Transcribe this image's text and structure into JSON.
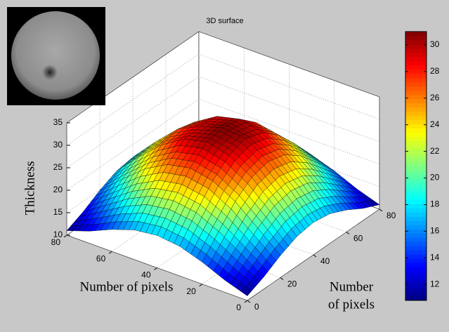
{
  "chart_data": {
    "type": "surface",
    "title": "3D surface",
    "zlabel": "Thickness",
    "xlabel": "Number of pixels",
    "ylabel_lines": [
      "Number",
      "of pixels"
    ],
    "x": [
      0,
      10,
      20,
      30,
      40,
      50,
      60,
      70,
      80
    ],
    "y": [
      0,
      10,
      20,
      30,
      40,
      50,
      60,
      70,
      80
    ],
    "z": [
      [
        11.0,
        12.7,
        14.9,
        16.6,
        17.2,
        16.6,
        14.9,
        12.7,
        11.0
      ],
      [
        12.7,
        16.0,
        19.2,
        21.6,
        22.4,
        21.6,
        19.2,
        16.0,
        12.7
      ],
      [
        14.9,
        19.2,
        23.3,
        26.1,
        27.1,
        26.1,
        23.3,
        19.2,
        14.9
      ],
      [
        16.6,
        21.6,
        26.1,
        29.2,
        30.4,
        29.2,
        26.1,
        21.6,
        16.6
      ],
      [
        17.2,
        22.4,
        27.1,
        30.4,
        31.0,
        30.4,
        27.1,
        22.4,
        17.2
      ],
      [
        16.6,
        21.6,
        26.1,
        29.2,
        29.5,
        29.2,
        26.1,
        21.6,
        16.6
      ],
      [
        14.9,
        19.2,
        23.3,
        26.1,
        27.1,
        26.1,
        23.3,
        19.2,
        14.9
      ],
      [
        12.7,
        16.0,
        19.2,
        21.6,
        22.4,
        21.6,
        19.2,
        16.0,
        12.7
      ],
      [
        11.0,
        12.7,
        14.9,
        16.6,
        17.2,
        16.6,
        14.9,
        12.7,
        11.0
      ]
    ],
    "xlim": [
      0,
      80
    ],
    "xticks": [
      0,
      20,
      40,
      60,
      80
    ],
    "ylim": [
      0,
      80
    ],
    "yticks": [
      0,
      20,
      40,
      60,
      80
    ],
    "zlim": [
      10,
      35
    ],
    "zticks": [
      10,
      15,
      20,
      25,
      30,
      35
    ],
    "grid": true,
    "colormap": "jet",
    "colorbar": {
      "lim": [
        10.8,
        31.0
      ],
      "ticks": [
        12,
        14,
        16,
        18,
        20,
        22,
        24,
        26,
        28,
        30
      ]
    }
  }
}
